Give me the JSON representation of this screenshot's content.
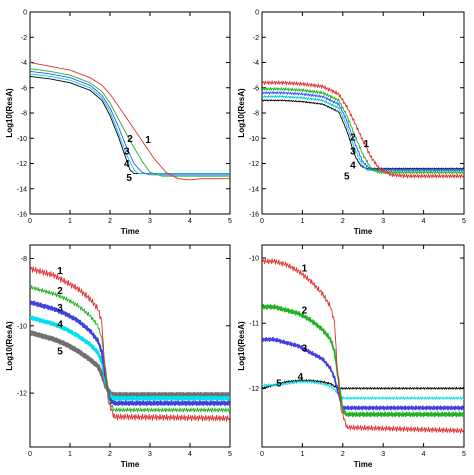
{
  "chart_data": [
    {
      "type": "line",
      "xlabel": "Time",
      "ylabel": "Log10(ResA)",
      "xlim": [
        0,
        5
      ],
      "ylim": [
        -16,
        0
      ],
      "xticks": [
        0,
        1,
        2,
        3,
        4,
        5
      ],
      "yticks": [
        -16,
        -14,
        -12,
        -10,
        -8,
        -6,
        -4,
        -2,
        0
      ],
      "grid": false,
      "legend": "none",
      "series": [
        {
          "name": "1",
          "color": "#e03030",
          "x": [
            0,
            0.5,
            1.0,
            1.5,
            1.8,
            2.0,
            2.2,
            2.5,
            2.8,
            3.1,
            3.4,
            3.7,
            4.0,
            4.3,
            5.0
          ],
          "y": [
            -4.0,
            -4.3,
            -4.6,
            -5.2,
            -5.8,
            -6.5,
            -7.4,
            -8.8,
            -10.2,
            -11.6,
            -12.7,
            -13.2,
            -13.3,
            -13.2,
            -13.2
          ]
        },
        {
          "name": "2",
          "color": "#20b020",
          "x": [
            0,
            0.5,
            1.0,
            1.5,
            1.8,
            2.0,
            2.2,
            2.5,
            2.8,
            3.0,
            3.3,
            5.0
          ],
          "y": [
            -4.5,
            -4.7,
            -5.0,
            -5.6,
            -6.3,
            -7.2,
            -8.4,
            -10.2,
            -11.8,
            -12.7,
            -13.0,
            -13.0
          ]
        },
        {
          "name": "3",
          "color": "#3050ff",
          "x": [
            0,
            0.5,
            1.0,
            1.5,
            1.8,
            2.0,
            2.2,
            2.4,
            2.6,
            2.8,
            3.0,
            5.0
          ],
          "y": [
            -4.7,
            -4.9,
            -5.2,
            -5.8,
            -6.6,
            -7.6,
            -9.0,
            -10.6,
            -12.0,
            -12.7,
            -12.9,
            -12.9
          ]
        },
        {
          "name": "4",
          "color": "#00c8d8",
          "x": [
            0,
            0.5,
            1.0,
            1.5,
            1.8,
            2.0,
            2.2,
            2.4,
            2.6,
            2.7,
            5.0
          ],
          "y": [
            -4.9,
            -5.1,
            -5.4,
            -6.0,
            -6.8,
            -7.9,
            -9.5,
            -11.2,
            -12.5,
            -12.8,
            -12.8
          ]
        },
        {
          "name": "5",
          "color": "#000000",
          "x": [
            0,
            0.5,
            1.0,
            1.5,
            1.8,
            2.0,
            2.2,
            2.4,
            2.5,
            2.6,
            5.0
          ],
          "y": [
            -5.1,
            -5.3,
            -5.6,
            -6.2,
            -7.0,
            -8.2,
            -9.8,
            -11.6,
            -12.5,
            -12.8,
            -12.8
          ]
        }
      ],
      "annotations": [
        {
          "text": "1",
          "x": 2.95,
          "y": -10.1
        },
        {
          "text": "2",
          "x": 2.5,
          "y": -10.0
        },
        {
          "text": "3",
          "x": 2.42,
          "y": -11.0
        },
        {
          "text": "4",
          "x": 2.42,
          "y": -12.0
        },
        {
          "text": "5",
          "x": 2.48,
          "y": -13.1
        }
      ]
    },
    {
      "type": "line",
      "xlabel": "Time",
      "ylabel": "Log10(ResA)",
      "xlim": [
        0,
        5
      ],
      "ylim": [
        -16,
        0
      ],
      "xticks": [
        0,
        1,
        2,
        3,
        4,
        5
      ],
      "yticks": [
        -16,
        -14,
        -12,
        -10,
        -8,
        -6,
        -4,
        -2,
        0
      ],
      "grid": false,
      "legend": "none",
      "series": [
        {
          "name": "1",
          "color": "#e03030",
          "noise": 0.15,
          "x": [
            0,
            0.5,
            1.0,
            1.5,
            1.9,
            2.1,
            2.3,
            2.5,
            2.7,
            2.9,
            3.2,
            3.6,
            5.0
          ],
          "y": [
            -5.6,
            -5.6,
            -5.7,
            -5.9,
            -6.5,
            -7.5,
            -8.8,
            -10.2,
            -11.5,
            -12.4,
            -12.9,
            -13.0,
            -13.0
          ]
        },
        {
          "name": "2",
          "color": "#20b020",
          "noise": 0.12,
          "x": [
            0,
            0.5,
            1.0,
            1.5,
            1.9,
            2.1,
            2.3,
            2.5,
            2.7,
            2.9,
            5.0
          ],
          "y": [
            -6.1,
            -6.1,
            -6.2,
            -6.4,
            -7.0,
            -8.2,
            -9.8,
            -11.3,
            -12.4,
            -12.7,
            -12.7
          ]
        },
        {
          "name": "3",
          "color": "#3050ff",
          "noise": 0.1,
          "x": [
            0,
            0.5,
            1.0,
            1.5,
            1.9,
            2.1,
            2.3,
            2.5,
            2.7,
            5.0
          ],
          "y": [
            -6.4,
            -6.4,
            -6.5,
            -6.7,
            -7.3,
            -8.6,
            -10.4,
            -11.9,
            -12.5,
            -12.5
          ]
        },
        {
          "name": "4",
          "color": "#00c8d8",
          "noise": 0.08,
          "x": [
            0,
            0.5,
            1.0,
            1.5,
            1.9,
            2.1,
            2.3,
            2.5,
            2.6,
            5.0
          ],
          "y": [
            -6.7,
            -6.7,
            -6.8,
            -7.0,
            -7.6,
            -9.0,
            -10.9,
            -12.2,
            -12.5,
            -12.5
          ]
        },
        {
          "name": "5",
          "color": "#000000",
          "noise": 0.05,
          "x": [
            0,
            0.5,
            1.0,
            1.5,
            1.9,
            2.1,
            2.3,
            2.45,
            2.6,
            5.0
          ],
          "y": [
            -7.0,
            -7.0,
            -7.1,
            -7.3,
            -7.9,
            -9.4,
            -11.4,
            -12.2,
            -12.4,
            -12.4
          ]
        }
      ],
      "annotations": [
        {
          "text": "1",
          "x": 2.58,
          "y": -10.4
        },
        {
          "text": "2",
          "x": 2.25,
          "y": -9.9
        },
        {
          "text": "3",
          "x": 2.25,
          "y": -11.0
        },
        {
          "text": "4",
          "x": 2.25,
          "y": -12.1
        },
        {
          "text": "5",
          "x": 2.1,
          "y": -13.0
        }
      ]
    },
    {
      "type": "line",
      "xlabel": "Time",
      "ylabel": "Log10(ResA)",
      "xlim": [
        0,
        5
      ],
      "ylim": [
        -13.6,
        -7.6
      ],
      "xticks": [
        0,
        1,
        2,
        3,
        4,
        5
      ],
      "yticks": [
        -12,
        -10,
        -8
      ],
      "grid": false,
      "legend": "none",
      "series": [
        {
          "name": "1",
          "color": "#e03030",
          "noise": 0.09,
          "x": [
            0,
            0.3,
            0.6,
            0.9,
            1.2,
            1.5,
            1.7,
            1.8,
            1.85,
            1.95,
            2.1,
            5.0
          ],
          "y": [
            -8.3,
            -8.4,
            -8.5,
            -8.7,
            -8.9,
            -9.2,
            -9.5,
            -9.9,
            -11.0,
            -12.2,
            -12.7,
            -12.75
          ]
        },
        {
          "name": "2",
          "color": "#20b020",
          "noise": 0.06,
          "x": [
            0,
            0.3,
            0.6,
            0.9,
            1.2,
            1.5,
            1.7,
            1.8,
            1.9,
            2.0,
            2.1,
            5.0
          ],
          "y": [
            -8.85,
            -8.95,
            -9.05,
            -9.2,
            -9.4,
            -9.7,
            -10.0,
            -10.4,
            -11.4,
            -12.3,
            -12.5,
            -12.5
          ]
        },
        {
          "name": "3",
          "color": "#4040e0",
          "noise": 0.05,
          "thick": 2.2,
          "x": [
            0,
            0.3,
            0.6,
            0.9,
            1.2,
            1.5,
            1.7,
            1.8,
            1.9,
            2.0,
            2.1,
            5.0
          ],
          "y": [
            -9.3,
            -9.4,
            -9.5,
            -9.65,
            -9.85,
            -10.15,
            -10.45,
            -10.8,
            -11.6,
            -12.2,
            -12.3,
            -12.3
          ]
        },
        {
          "name": "4",
          "color": "#00e0f0",
          "noise": 0.04,
          "thick": 2.6,
          "x": [
            0,
            0.3,
            0.6,
            0.9,
            1.2,
            1.5,
            1.7,
            1.8,
            1.9,
            2.0,
            2.1,
            5.0
          ],
          "y": [
            -9.75,
            -9.85,
            -9.95,
            -10.1,
            -10.3,
            -10.55,
            -10.8,
            -11.1,
            -11.7,
            -12.1,
            -12.15,
            -12.15
          ]
        },
        {
          "name": "5",
          "color": "#707070",
          "noise": 0.03,
          "thick": 3.6,
          "x": [
            0,
            0.3,
            0.6,
            0.9,
            1.2,
            1.5,
            1.7,
            1.8,
            1.9,
            2.0,
            2.1,
            5.0
          ],
          "y": [
            -10.2,
            -10.3,
            -10.4,
            -10.55,
            -10.75,
            -11.0,
            -11.2,
            -11.45,
            -11.8,
            -12.0,
            -12.05,
            -12.05
          ]
        }
      ],
      "annotations": [
        {
          "text": "1",
          "x": 0.75,
          "y": -8.35
        },
        {
          "text": "2",
          "x": 0.75,
          "y": -8.95
        },
        {
          "text": "3",
          "x": 0.75,
          "y": -9.45
        },
        {
          "text": "4",
          "x": 0.75,
          "y": -9.95
        },
        {
          "text": "5",
          "x": 0.75,
          "y": -10.75
        }
      ]
    },
    {
      "type": "line",
      "xlabel": "Time",
      "ylabel": "Log10(ResA)",
      "xlim": [
        0,
        5
      ],
      "ylim": [
        -12.9,
        -9.8
      ],
      "xticks": [
        0,
        1,
        2,
        3,
        4,
        5
      ],
      "yticks": [
        -12,
        -11,
        -10
      ],
      "grid": false,
      "legend": "none",
      "series": [
        {
          "name": "1",
          "color": "#e03030",
          "noise": 0.04,
          "x": [
            0,
            0.3,
            0.6,
            0.9,
            1.2,
            1.5,
            1.7,
            1.8,
            1.85,
            1.95,
            2.1,
            5.0
          ],
          "y": [
            -10.05,
            -10.05,
            -10.1,
            -10.2,
            -10.35,
            -10.55,
            -10.75,
            -11.0,
            -11.6,
            -12.3,
            -12.6,
            -12.65
          ]
        },
        {
          "name": "2",
          "color": "#20b020",
          "noise": 0.03,
          "thick": 1.8,
          "x": [
            0,
            0.3,
            0.6,
            0.9,
            1.2,
            1.5,
            1.7,
            1.8,
            1.9,
            2.0,
            2.1,
            5.0
          ],
          "y": [
            -10.75,
            -10.75,
            -10.8,
            -10.85,
            -10.95,
            -11.1,
            -11.25,
            -11.45,
            -11.9,
            -12.35,
            -12.4,
            -12.4
          ]
        },
        {
          "name": "3",
          "color": "#4040e0",
          "noise": 0.025,
          "thick": 1.8,
          "x": [
            0,
            0.3,
            0.6,
            0.9,
            1.2,
            1.5,
            1.7,
            1.8,
            1.9,
            2.0,
            2.1,
            5.0
          ],
          "y": [
            -11.25,
            -11.25,
            -11.3,
            -11.35,
            -11.45,
            -11.55,
            -11.7,
            -11.85,
            -12.1,
            -12.3,
            -12.3,
            -12.3
          ]
        },
        {
          "name": "4",
          "color": "#00e0f0",
          "noise": 0.02,
          "x": [
            0,
            0.3,
            0.6,
            0.9,
            1.2,
            1.5,
            1.7,
            1.8,
            1.9,
            2.0,
            2.1,
            5.0
          ],
          "y": [
            -11.95,
            -11.95,
            -11.93,
            -11.9,
            -11.9,
            -11.93,
            -11.97,
            -12.02,
            -12.1,
            -12.15,
            -12.15,
            -12.15
          ]
        },
        {
          "name": "5",
          "color": "#000000",
          "noise": 0.015,
          "x": [
            0,
            0.3,
            0.6,
            0.9,
            1.2,
            1.5,
            1.7,
            1.8,
            1.9,
            2.0,
            2.1,
            5.0
          ],
          "y": [
            -12.0,
            -11.95,
            -11.9,
            -11.88,
            -11.88,
            -11.9,
            -11.93,
            -11.97,
            -12.0,
            -12.0,
            -12.0,
            -12.0
          ]
        }
      ],
      "annotations": [
        {
          "text": "1",
          "x": 1.05,
          "y": -10.15
        },
        {
          "text": "2",
          "x": 1.05,
          "y": -10.8
        },
        {
          "text": "3",
          "x": 1.05,
          "y": -11.38
        },
        {
          "text": "4",
          "x": 0.95,
          "y": -11.82
        },
        {
          "text": "5",
          "x": 0.42,
          "y": -11.92
        }
      ]
    }
  ]
}
